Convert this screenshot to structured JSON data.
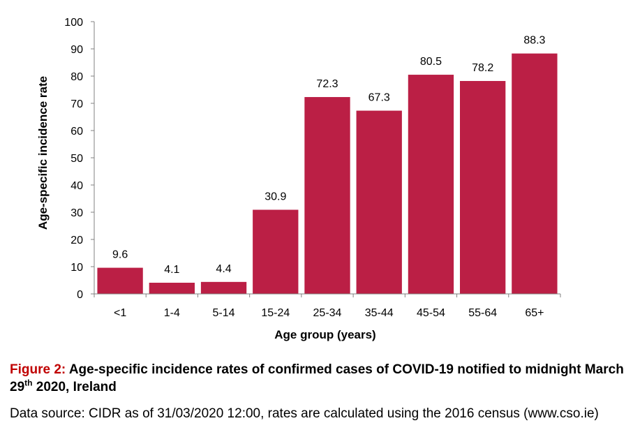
{
  "chart_data": {
    "type": "bar",
    "categories": [
      "<1",
      "1-4",
      "5-14",
      "15-24",
      "25-34",
      "35-44",
      "45-54",
      "55-64",
      "65+"
    ],
    "values": [
      9.6,
      4.1,
      4.4,
      30.9,
      72.3,
      67.3,
      80.5,
      78.2,
      88.3
    ],
    "value_labels": [
      "9.6",
      "4.1",
      "4.4",
      "30.9",
      "72.3",
      "67.3",
      "80.5",
      "78.2",
      "88.3"
    ],
    "title": "",
    "xlabel": "Age group (years)",
    "ylabel": "Age-specific incidence rate",
    "ylim": [
      0,
      100
    ],
    "yticks": [
      0,
      10,
      20,
      30,
      40,
      50,
      60,
      70,
      80,
      90,
      100
    ],
    "grid": false,
    "bar_color": "#bb1f45"
  },
  "caption": {
    "figure_prefix": "Figure 2:",
    "title_text": "Age-specific incidence rates of confirmed cases of COVID-19 notified to midnight March 29",
    "title_sup": "th",
    "title_suffix": "2020, Ireland",
    "source": "Data source: CIDR as of 31/03/2020 12:00, rates are calculated using the 2016 census (www.cso.ie)"
  }
}
